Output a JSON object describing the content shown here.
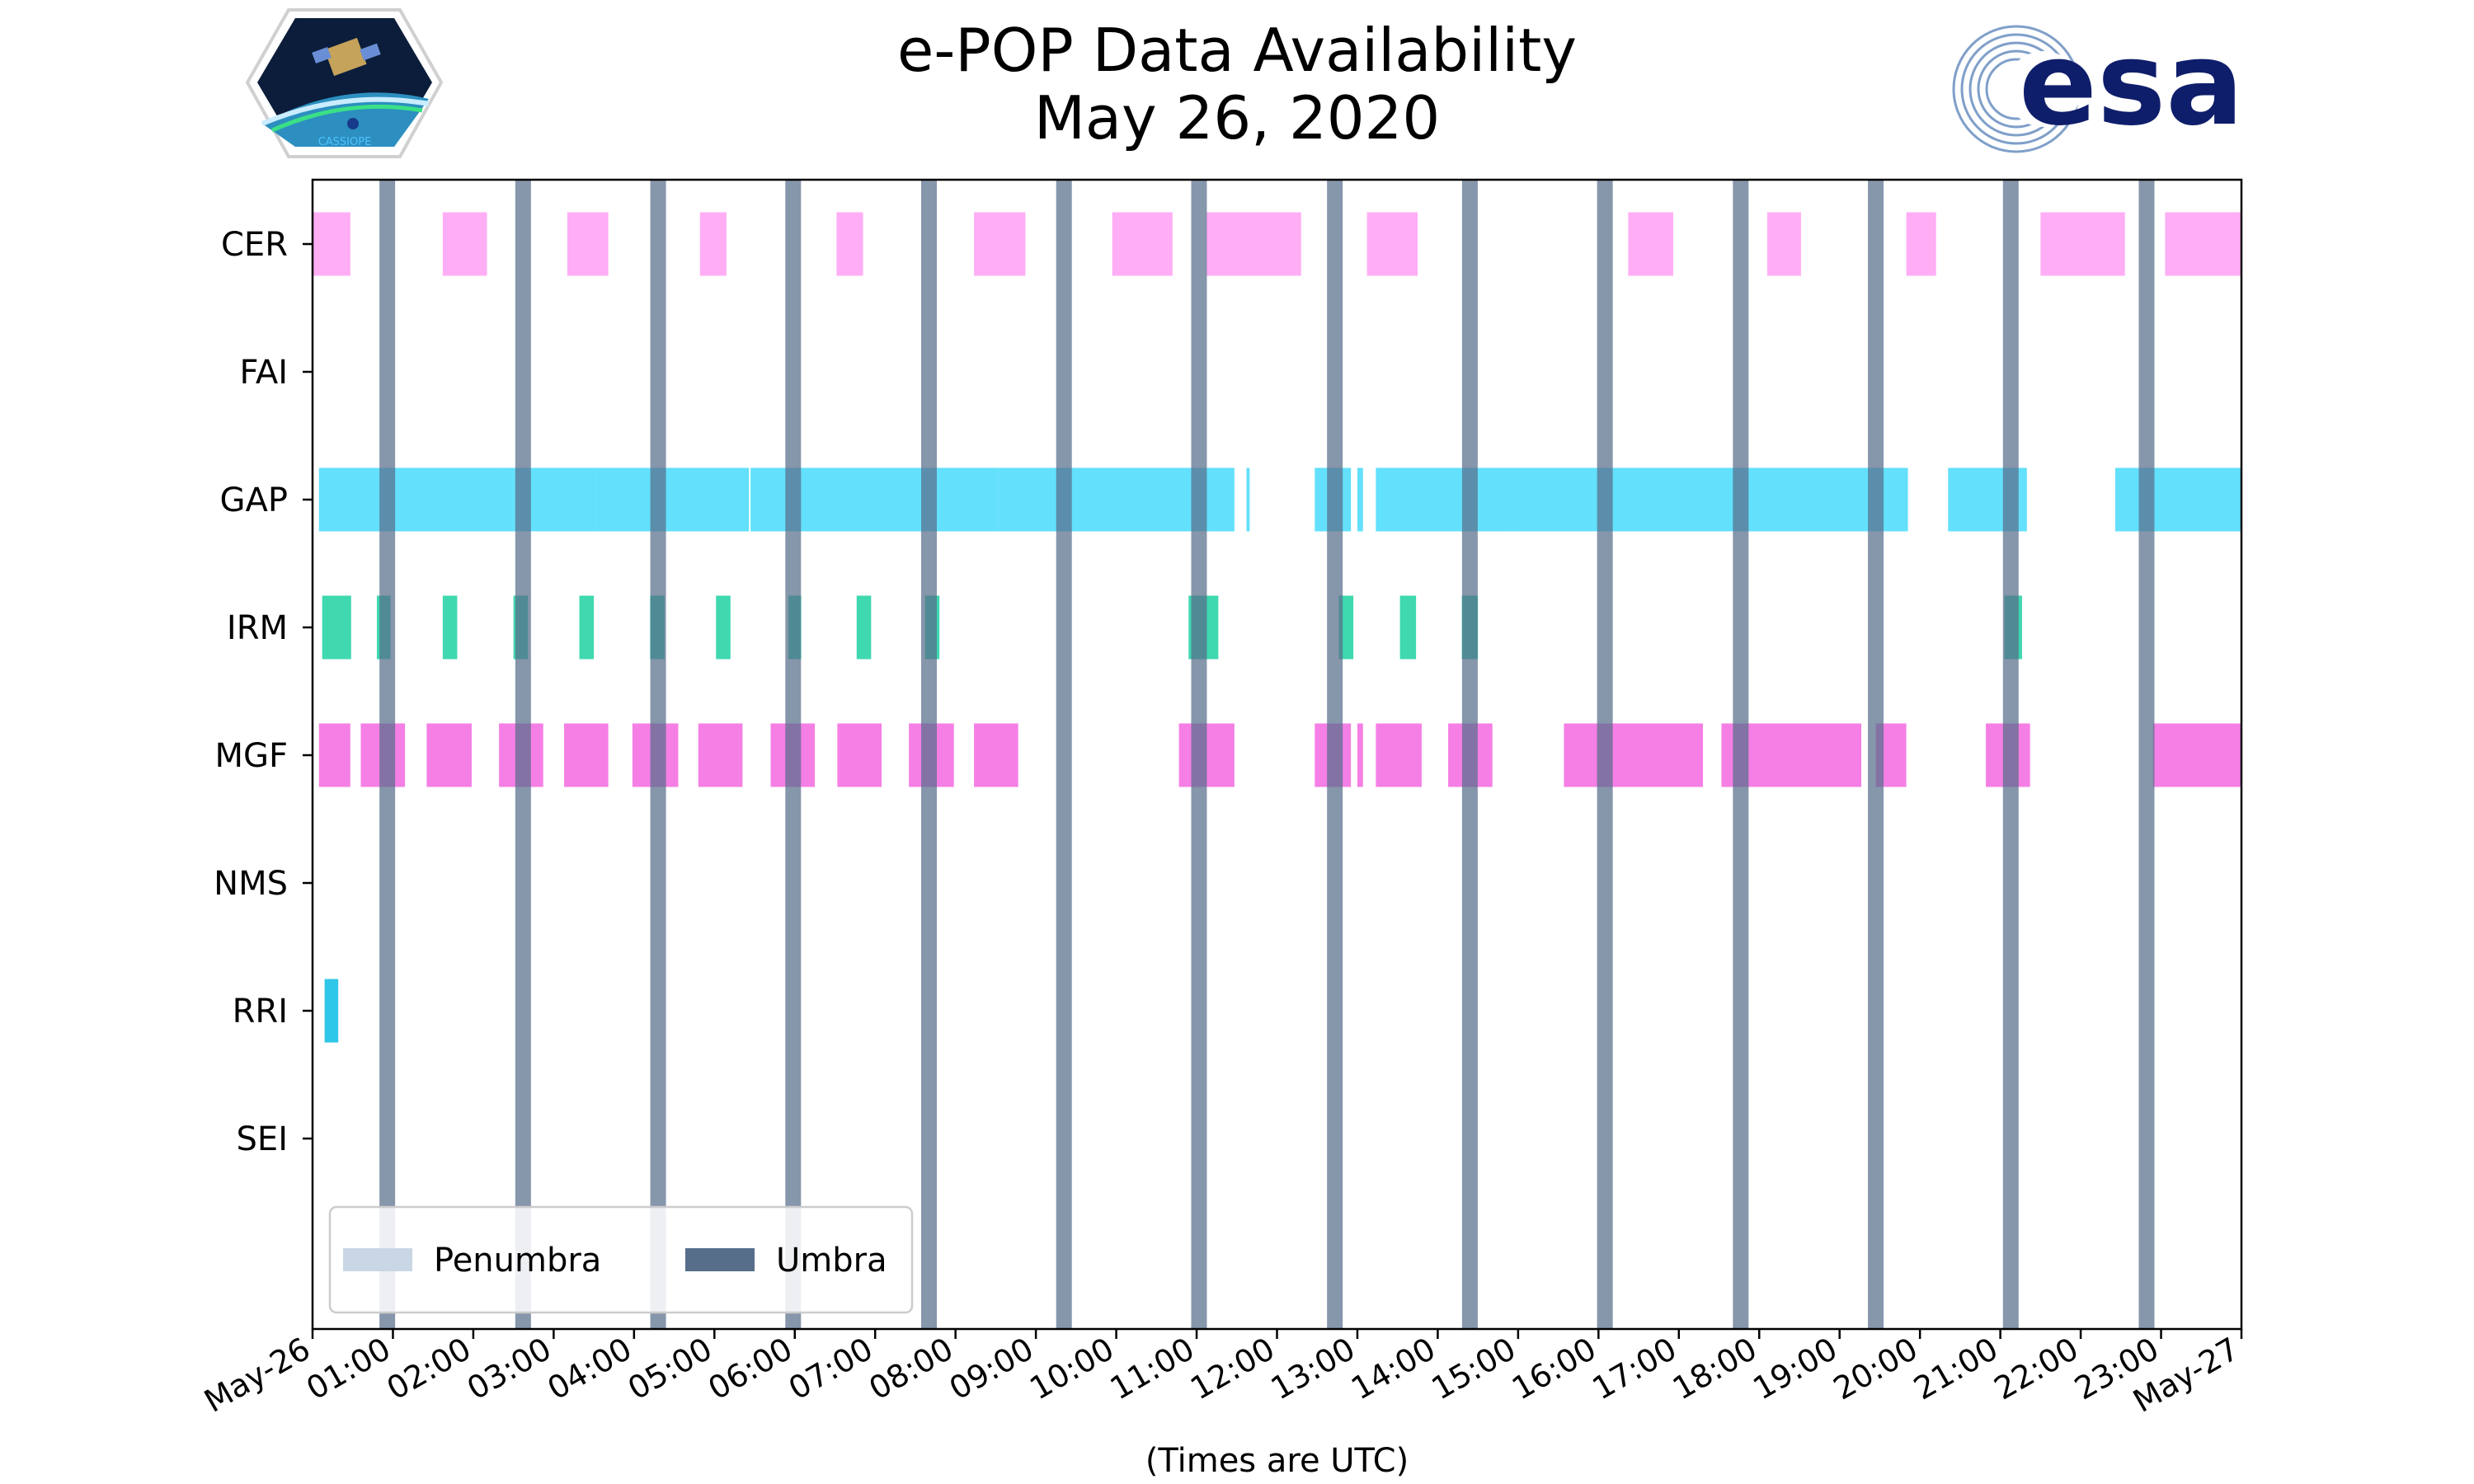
{
  "chart_data": {
    "type": "gantt",
    "title": "e-POP Data Availability",
    "subtitle": "May 26, 2020",
    "xlabel": "(Times are UTC)",
    "xlim_hours": [
      0,
      24
    ],
    "x_tick_labels": [
      "May-26",
      "01:00",
      "02:00",
      "03:00",
      "04:00",
      "05:00",
      "06:00",
      "07:00",
      "08:00",
      "09:00",
      "10:00",
      "11:00",
      "12:00",
      "13:00",
      "14:00",
      "15:00",
      "16:00",
      "17:00",
      "18:00",
      "19:00",
      "20:00",
      "21:00",
      "22:00",
      "23:00",
      "May-27"
    ],
    "categories": [
      "CER",
      "FAI",
      "GAP",
      "IRM",
      "MGF",
      "NMS",
      "RRI",
      "SEI"
    ],
    "colors": {
      "CER": "#ff9ff3",
      "GAP": "#48dbfb",
      "IRM": "#1dd1a1",
      "MGF": "#f368e0",
      "RRI": "#0abde3",
      "umbra": "#576e8b",
      "penumbra": "#c8d6e5"
    },
    "series": [
      {
        "category": "CER",
        "intervals": [
          [
            0.0,
            0.47
          ],
          [
            1.62,
            2.17
          ],
          [
            3.17,
            3.68
          ],
          [
            4.82,
            5.15
          ],
          [
            6.52,
            6.85
          ],
          [
            8.23,
            8.87
          ],
          [
            9.95,
            10.7
          ],
          [
            11.12,
            12.3
          ],
          [
            13.12,
            13.75
          ],
          [
            16.37,
            16.93
          ],
          [
            18.1,
            18.52
          ],
          [
            19.83,
            20.2
          ],
          [
            21.5,
            22.55
          ],
          [
            23.05,
            24.0
          ]
        ]
      },
      {
        "category": "FAI",
        "intervals": []
      },
      {
        "category": "GAP",
        "intervals": [
          [
            0.08,
            2.38
          ],
          [
            2.38,
            3.52
          ],
          [
            3.52,
            5.43
          ],
          [
            5.45,
            8.53
          ],
          [
            8.53,
            10.63
          ],
          [
            10.63,
            11.47
          ],
          [
            11.62,
            11.66
          ],
          [
            12.47,
            12.92
          ],
          [
            13.0,
            13.07
          ],
          [
            13.23,
            14.92
          ],
          [
            14.92,
            19.85
          ],
          [
            20.35,
            21.33
          ],
          [
            22.43,
            24.0
          ]
        ]
      },
      {
        "category": "IRM",
        "intervals": [
          [
            0.12,
            0.48
          ],
          [
            0.8,
            0.97
          ],
          [
            1.62,
            1.8
          ],
          [
            2.5,
            2.68
          ],
          [
            3.32,
            3.5
          ],
          [
            4.2,
            4.38
          ],
          [
            5.02,
            5.2
          ],
          [
            5.92,
            6.08
          ],
          [
            6.77,
            6.95
          ],
          [
            7.62,
            7.8
          ],
          [
            10.9,
            11.27
          ],
          [
            12.77,
            12.95
          ],
          [
            13.53,
            13.73
          ],
          [
            14.3,
            14.5
          ],
          [
            21.05,
            21.27
          ]
        ]
      },
      {
        "category": "MGF",
        "intervals": [
          [
            0.08,
            0.47
          ],
          [
            0.6,
            1.15
          ],
          [
            1.42,
            1.98
          ],
          [
            2.32,
            2.87
          ],
          [
            3.13,
            3.68
          ],
          [
            3.98,
            4.55
          ],
          [
            4.8,
            5.35
          ],
          [
            5.7,
            6.25
          ],
          [
            6.53,
            7.08
          ],
          [
            7.42,
            7.98
          ],
          [
            8.23,
            8.78
          ],
          [
            10.78,
            11.47
          ],
          [
            12.47,
            12.92
          ],
          [
            13.0,
            13.07
          ],
          [
            13.23,
            13.8
          ],
          [
            14.13,
            14.68
          ],
          [
            15.57,
            17.3
          ],
          [
            17.53,
            19.27
          ],
          [
            19.45,
            19.83
          ],
          [
            20.82,
            21.37
          ],
          [
            22.9,
            24.0
          ]
        ]
      },
      {
        "category": "NMS",
        "intervals": []
      },
      {
        "category": "RRI",
        "intervals": [
          [
            0.15,
            0.32
          ]
        ]
      },
      {
        "category": "SEI",
        "intervals": []
      }
    ],
    "umbra_hours": [
      0.93,
      2.62,
      4.3,
      5.98,
      7.67,
      9.35,
      11.03,
      12.72,
      14.4,
      16.08,
      17.77,
      19.45,
      21.13,
      22.82
    ],
    "legend": {
      "placement": "lower-left",
      "entries": [
        {
          "label": "Penumbra",
          "color_key": "penumbra"
        },
        {
          "label": "Umbra",
          "color_key": "umbra"
        }
      ]
    }
  },
  "logos": {
    "left_logo_name": "CASSIOPE",
    "right_logo_text": "esa"
  }
}
